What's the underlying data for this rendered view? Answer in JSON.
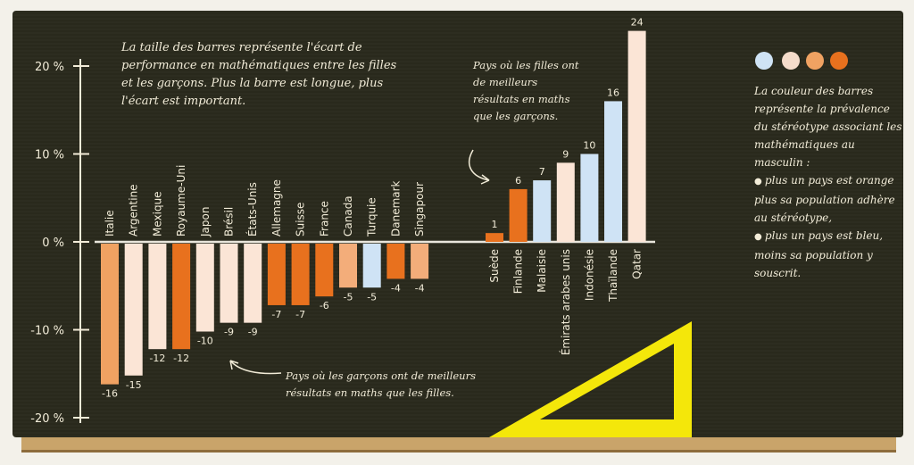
{
  "chart_data": {
    "type": "bar",
    "ylim": [
      -20,
      24
    ],
    "y_ticks": [
      "20 %",
      "10 %",
      "0 %",
      "-10 %",
      "-20 %"
    ],
    "y_tick_values": [
      20,
      10,
      0,
      -10,
      -20
    ],
    "grid": false,
    "negative_group": {
      "categories": [
        "Italie",
        "Argentine",
        "Mexique",
        "Royaume-Uni",
        "Japon",
        "Brésil",
        "États-Unis",
        "Allemagne",
        "Suisse",
        "France",
        "Canada",
        "Turquie",
        "Danemark",
        "Singapour"
      ],
      "values": [
        -16,
        -15,
        -12,
        -12,
        -10,
        -9,
        -9,
        -7,
        -7,
        -6,
        -5,
        -5,
        -4,
        -4
      ],
      "colors": [
        "#f0a262",
        "#fbe5d6",
        "#fbe5d6",
        "#e8711e",
        "#fbe5d6",
        "#fbe5d6",
        "#fbe5d6",
        "#e8711e",
        "#e8711e",
        "#e8711e",
        "#f3ad7a",
        "#cfe3f5",
        "#e8711e",
        "#f3ad7a"
      ]
    },
    "positive_group": {
      "categories": [
        "Suède",
        "Finlande",
        "Malaisie",
        "Émirats arabes unis",
        "Indonésie",
        "Thaïlande",
        "Qatar"
      ],
      "values": [
        1,
        6,
        7,
        9,
        10,
        16,
        24
      ],
      "colors": [
        "#e8711e",
        "#e8711e",
        "#cfe3f5",
        "#fbe5d6",
        "#cfe3f5",
        "#cfe3f5",
        "#fbe5d6"
      ]
    },
    "legend_colors": [
      "#cfe3f5",
      "#f5dccb",
      "#f0a262",
      "#e8711e"
    ]
  },
  "intro": "La taille des barres représente l'écart de performance en mathématiques entre les filles et les garçons. Plus la barre est longue, plus l'écart est important.",
  "girls_note": "Pays où les filles ont de meilleurs résultats en maths que les garçons.",
  "boys_note": "Pays où les garçons ont de meilleurs résultats en maths que les filles.",
  "legend": {
    "lead": "La couleur des barres représente la prévalence du stéréotype associant les mathématiques au masculin :",
    "item1": "plus un pays est orange plus sa population adhère au stéréotype,",
    "item2": "plus un pays est bleu, moins sa population y souscrit."
  }
}
